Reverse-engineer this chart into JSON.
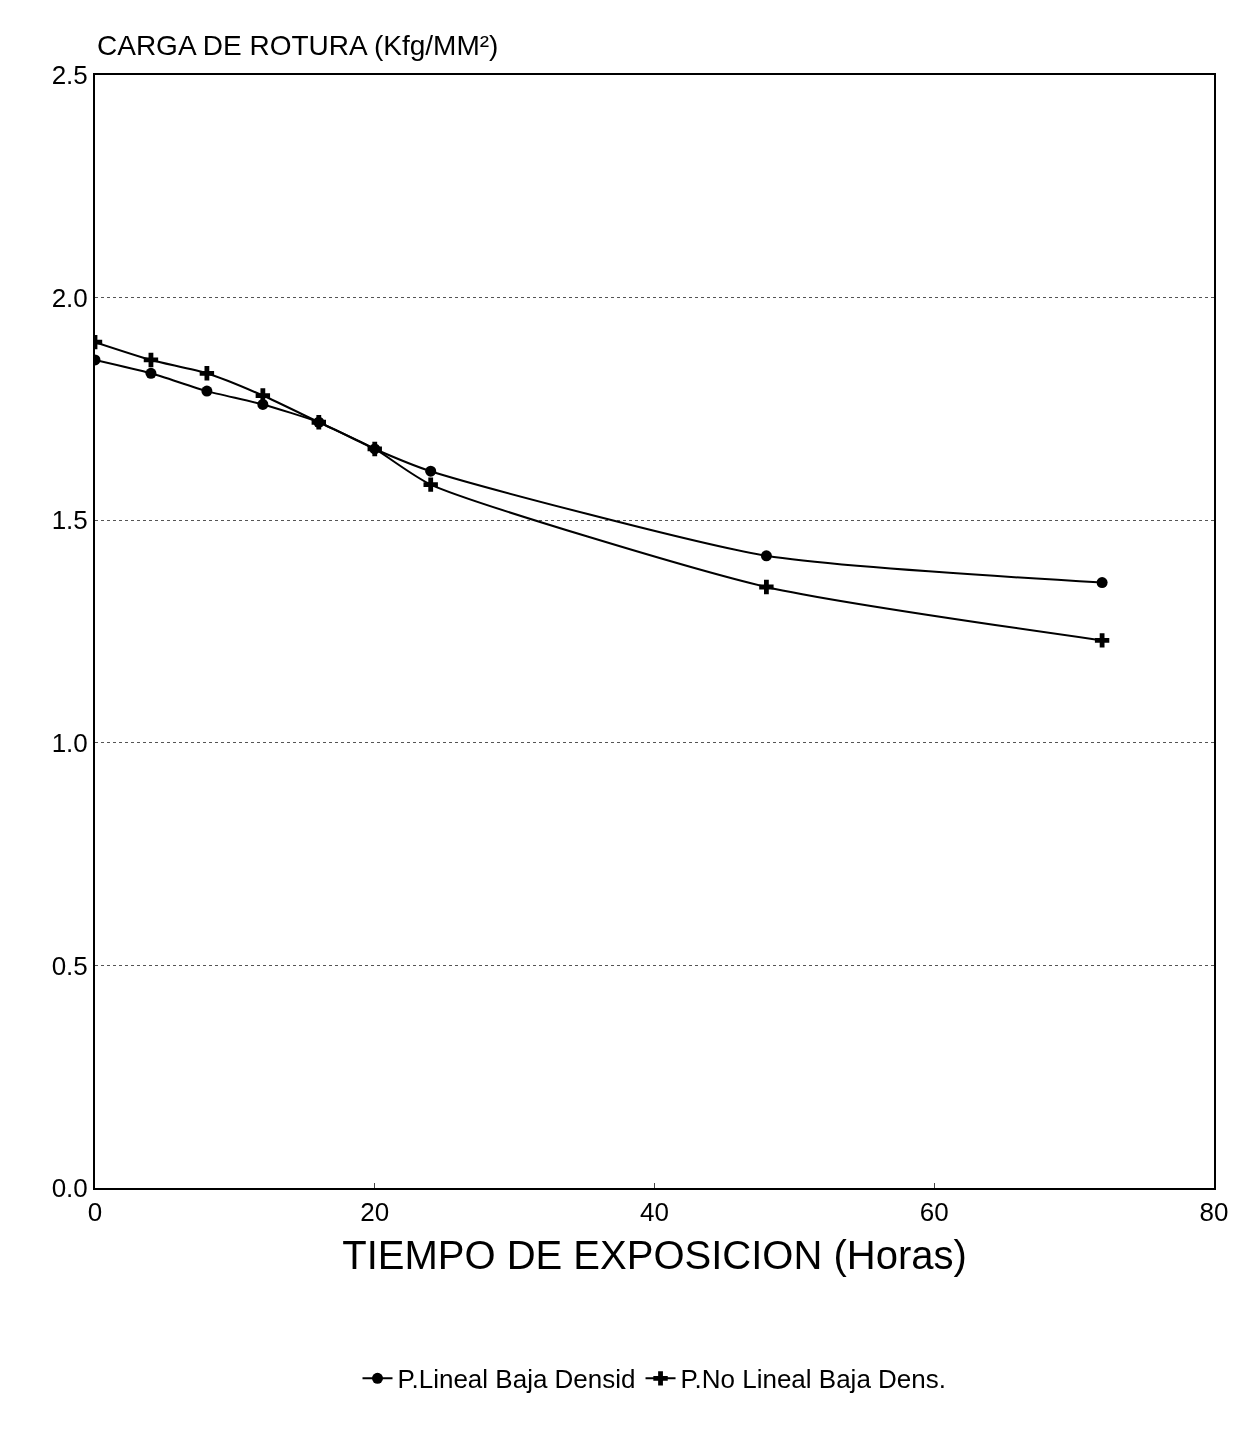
{
  "chart_data": {
    "type": "line",
    "ylabel": "CARGA DE ROTURA (Kfg/MM²)",
    "xlabel": "TIEMPO DE EXPOSICION (Horas)",
    "x": [
      0,
      4,
      8,
      12,
      16,
      20,
      24,
      48,
      72
    ],
    "series": [
      {
        "name": "P.Lineal Baja Densid",
        "color": "#000000",
        "marker": "circle",
        "values": [
          1.86,
          1.83,
          1.79,
          1.76,
          1.72,
          1.66,
          1.61,
          1.42,
          1.36
        ]
      },
      {
        "name": "P.No Lineal Baja Dens.",
        "color": "#000000",
        "marker": "cross",
        "values": [
          1.9,
          1.86,
          1.83,
          1.78,
          1.72,
          1.66,
          1.58,
          1.35,
          1.23
        ]
      }
    ],
    "xlim": [
      0,
      80
    ],
    "xticks": [
      0,
      20,
      40,
      60,
      80
    ],
    "ylim": [
      0,
      2.5
    ],
    "yticks": [
      {
        "value": 0,
        "label": "0.0"
      },
      {
        "value": 0.5,
        "label": "0.5"
      },
      {
        "value": 1,
        "label": "1.0"
      },
      {
        "value": 1.5,
        "label": "1.5"
      },
      {
        "value": 2,
        "label": "2.0"
      },
      {
        "value": 2.5,
        "label": "2.5"
      }
    ],
    "grid": "y",
    "legend": "bottom",
    "line_style": "solid"
  }
}
